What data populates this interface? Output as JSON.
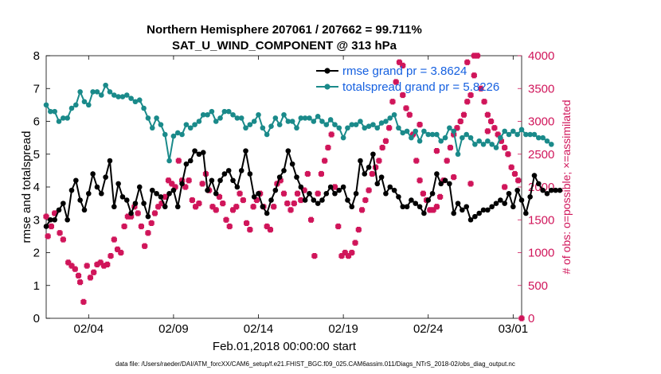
{
  "chart_data": {
    "type": "line",
    "title_line1": "Northern Hemisphere 207061 / 207662 = 99.711%",
    "title_line2": "SAT_U_WIND_COMPONENT @ 313 hPa",
    "xlabel": "Feb.01,2018 00:00:00 start",
    "ylabel": "rmse and totalspread",
    "ylabel_right": "# of obs: o=possible; ×=assimilated",
    "footer": "data file: /Users/raeder/DAI/ATM_forcXX/CAM6_setup/f.e21.FHIST_BGC.f09_025.CAM6assim.011/Diags_NTrS_2018-02/obs_diag_output.nc",
    "xlim": [
      1.0,
      29.0
    ],
    "ylim": [
      0,
      8
    ],
    "ylim_right": [
      0,
      4000
    ],
    "x_ticks": [
      3.5,
      8.5,
      13.5,
      18.5,
      23.5,
      28.5
    ],
    "x_tick_labels": [
      "02/04",
      "02/09",
      "02/14",
      "02/19",
      "02/24",
      "03/01"
    ],
    "y_ticks": [
      0,
      1,
      2,
      3,
      4,
      5,
      6,
      7,
      8
    ],
    "y_tick_labels": [
      "0",
      "1",
      "2",
      "3",
      "4",
      "5",
      "6",
      "7",
      "8"
    ],
    "y_right_ticks": [
      0,
      500,
      1000,
      1500,
      2000,
      2500,
      3000,
      3500,
      4000
    ],
    "y_right_tick_labels": [
      "0",
      "500",
      "1000",
      "1500",
      "2000",
      "2500",
      "3000",
      "3500",
      "4000"
    ],
    "legend": [
      "rmse grand pr = 3.8624",
      "totalspread grand pr = 5.8226"
    ],
    "legend_position": "top-right",
    "colors": {
      "rmse": "#000000",
      "spread": "#1a8a8a",
      "obs": "#d0155a",
      "legend_text": "#1560e0"
    },
    "series": [
      {
        "name": "rmse",
        "x_start": 1.0,
        "x_step": 0.25,
        "values": [
          2.8,
          3.0,
          3.0,
          3.3,
          3.5,
          3.0,
          3.9,
          4.2,
          3.6,
          3.3,
          3.8,
          4.4,
          4.0,
          3.8,
          4.3,
          4.8,
          3.4,
          4.1,
          3.7,
          3.6,
          3.2,
          3.5,
          4.0,
          3.5,
          3.1,
          3.9,
          3.8,
          3.7,
          3.4,
          3.8,
          3.9,
          3.4,
          4.1,
          4.7,
          4.8,
          5.1,
          5.0,
          5.05,
          3.9,
          4.2,
          3.8,
          4.2,
          4.4,
          4.5,
          4.2,
          4.0,
          4.5,
          5.1,
          4.4,
          3.7,
          3.8,
          3.4,
          3.2,
          3.6,
          3.9,
          4.3,
          4.5,
          5.1,
          4.7,
          4.3,
          4.0,
          3.6,
          3.8,
          3.6,
          3.5,
          3.6,
          3.8,
          4.0,
          3.8,
          3.9,
          4.0,
          3.6,
          3.4,
          3.8,
          4.8,
          4.4,
          4.6,
          5.0,
          4.1,
          4.3,
          3.8,
          4.0,
          3.9,
          3.7,
          3.4,
          3.4,
          3.6,
          3.5,
          3.4,
          3.2,
          3.6,
          3.8,
          4.4,
          4.1,
          4.2,
          4.1,
          3.2,
          3.5,
          3.3,
          3.4,
          3.0,
          3.1,
          3.2,
          3.3,
          3.3,
          3.4,
          3.5,
          3.6,
          3.5,
          3.8,
          3.4,
          3.9,
          3.6,
          3.2,
          3.7,
          4.35,
          4.1,
          3.9,
          3.8,
          3.9,
          3.9,
          3.9
        ]
      },
      {
        "name": "totalspread",
        "x_start": 1.0,
        "x_step": 0.25,
        "values": [
          6.5,
          6.3,
          6.3,
          6.0,
          6.1,
          6.1,
          6.4,
          6.5,
          6.9,
          6.6,
          6.5,
          6.9,
          6.9,
          6.8,
          7.1,
          6.9,
          6.8,
          6.75,
          6.75,
          6.8,
          6.7,
          6.6,
          6.65,
          6.4,
          6.1,
          5.8,
          6.1,
          5.9,
          5.6,
          4.8,
          5.55,
          5.65,
          5.6,
          5.9,
          5.8,
          5.9,
          6.0,
          6.2,
          6.2,
          6.3,
          6.0,
          6.1,
          6.3,
          6.3,
          6.2,
          6.1,
          6.1,
          5.8,
          5.9,
          6.0,
          6.2,
          5.8,
          5.6,
          5.85,
          6.1,
          5.9,
          6.2,
          6.0,
          6.0,
          5.8,
          6.1,
          6.1,
          6.1,
          6.0,
          6.15,
          6.0,
          5.9,
          6.05,
          5.9,
          5.8,
          5.5,
          5.8,
          5.9,
          5.9,
          6.0,
          5.8,
          5.85,
          5.9,
          5.8,
          5.95,
          6.0,
          6.1,
          6.2,
          5.8,
          5.65,
          5.7,
          5.5,
          5.7,
          5.4,
          5.7,
          5.6,
          5.6,
          5.6,
          5.4,
          5.5,
          5.8,
          5.7,
          5.0,
          5.5,
          5.6,
          5.5,
          5.3,
          5.4,
          5.3,
          5.4,
          5.3,
          5.2,
          5.5,
          5.7,
          5.6,
          5.7,
          5.6,
          5.75,
          5.6,
          5.6,
          5.6,
          5.5,
          5.5,
          5.4,
          5.3
        ]
      }
    ],
    "obs_assimilated": [
      [
        1.0,
        1550
      ],
      [
        1.1,
        1250
      ],
      [
        1.3,
        1400
      ],
      [
        1.5,
        1600
      ],
      [
        1.8,
        1300
      ],
      [
        2.0,
        1200
      ],
      [
        2.3,
        850
      ],
      [
        2.5,
        800
      ],
      [
        2.7,
        750
      ],
      [
        2.9,
        650
      ],
      [
        3.0,
        550
      ],
      [
        3.2,
        250
      ],
      [
        3.4,
        800
      ],
      [
        3.6,
        620
      ],
      [
        3.8,
        700
      ],
      [
        4.0,
        820
      ],
      [
        4.2,
        850
      ],
      [
        4.4,
        800
      ],
      [
        4.6,
        820
      ],
      [
        4.8,
        950
      ],
      [
        5.0,
        1200
      ],
      [
        5.2,
        1050
      ],
      [
        5.4,
        1000
      ],
      [
        5.6,
        1400
      ],
      [
        5.8,
        1550
      ],
      [
        6.0,
        1550
      ],
      [
        6.2,
        1700
      ],
      [
        6.4,
        1600
      ],
      [
        6.6,
        1400
      ],
      [
        6.8,
        1100
      ],
      [
        7.0,
        1300
      ],
      [
        7.2,
        1450
      ],
      [
        7.4,
        1600
      ],
      [
        7.6,
        1700
      ],
      [
        7.8,
        1750
      ],
      [
        8.0,
        1850
      ],
      [
        8.2,
        2100
      ],
      [
        8.4,
        2050
      ],
      [
        8.6,
        2000
      ],
      [
        8.8,
        2400
      ],
      [
        9.0,
        2100
      ],
      [
        9.2,
        2000
      ],
      [
        9.4,
        2100
      ],
      [
        9.6,
        1800
      ],
      [
        9.8,
        1700
      ],
      [
        10.0,
        1750
      ],
      [
        10.2,
        2050
      ],
      [
        10.4,
        2200
      ],
      [
        10.6,
        1950
      ],
      [
        10.8,
        1700
      ],
      [
        11.0,
        1650
      ],
      [
        11.2,
        1850
      ],
      [
        11.4,
        1750
      ],
      [
        11.6,
        1500
      ],
      [
        11.8,
        1400
      ],
      [
        12.0,
        1650
      ],
      [
        12.2,
        1700
      ],
      [
        12.4,
        1900
      ],
      [
        12.6,
        1800
      ],
      [
        12.8,
        1450
      ],
      [
        13.0,
        1350
      ],
      [
        13.2,
        1700
      ],
      [
        13.4,
        1800
      ],
      [
        13.6,
        1900
      ],
      [
        13.8,
        1700
      ],
      [
        14.0,
        1400
      ],
      [
        14.2,
        1350
      ],
      [
        14.4,
        1700
      ],
      [
        14.6,
        2050
      ],
      [
        14.8,
        2100
      ],
      [
        15.0,
        1900
      ],
      [
        15.2,
        1750
      ],
      [
        15.4,
        1650
      ],
      [
        15.6,
        1750
      ],
      [
        15.8,
        1900
      ],
      [
        16.0,
        1800
      ],
      [
        16.2,
        1950
      ],
      [
        16.4,
        2200
      ],
      [
        16.6,
        1500
      ],
      [
        16.8,
        950
      ],
      [
        17.0,
        1900
      ],
      [
        17.2,
        2200
      ],
      [
        17.4,
        2400
      ],
      [
        17.6,
        2600
      ],
      [
        17.8,
        2800
      ],
      [
        18.0,
        2000
      ],
      [
        18.2,
        1400
      ],
      [
        18.4,
        950
      ],
      [
        18.6,
        1000
      ],
      [
        18.8,
        950
      ],
      [
        19.0,
        1000
      ],
      [
        19.2,
        1150
      ],
      [
        19.4,
        1350
      ],
      [
        19.6,
        1650
      ],
      [
        19.8,
        1800
      ],
      [
        20.0,
        1950
      ],
      [
        20.2,
        2200
      ],
      [
        20.4,
        2300
      ],
      [
        20.6,
        2400
      ],
      [
        20.8,
        2600
      ],
      [
        21.0,
        2700
      ],
      [
        21.2,
        2900
      ],
      [
        21.4,
        3300
      ],
      [
        21.6,
        3600
      ],
      [
        21.8,
        3900
      ],
      [
        22.0,
        3400
      ],
      [
        22.2,
        3200
      ],
      [
        22.4,
        3100
      ],
      [
        22.6,
        2800
      ],
      [
        22.8,
        2400
      ],
      [
        23.0,
        2100
      ],
      [
        23.2,
        1900
      ],
      [
        23.4,
        1800
      ],
      [
        23.6,
        1650
      ],
      [
        23.8,
        1650
      ],
      [
        24.0,
        1700
      ],
      [
        24.2,
        1850
      ],
      [
        24.4,
        2100
      ],
      [
        24.6,
        2400
      ],
      [
        24.8,
        2600
      ],
      [
        25.0,
        2800
      ],
      [
        25.2,
        2900
      ],
      [
        25.4,
        3000
      ],
      [
        25.6,
        3100
      ],
      [
        25.8,
        3300
      ],
      [
        26.0,
        3400
      ],
      [
        26.2,
        3700
      ],
      [
        26.4,
        4000
      ],
      [
        26.6,
        3500
      ],
      [
        26.8,
        3300
      ],
      [
        27.0,
        3100
      ],
      [
        27.2,
        3000
      ],
      [
        27.4,
        2900
      ],
      [
        27.6,
        2800
      ],
      [
        27.8,
        2700
      ],
      [
        28.0,
        2600
      ],
      [
        28.2,
        2500
      ],
      [
        28.4,
        2300
      ],
      [
        28.6,
        2200
      ],
      [
        28.8,
        2100
      ],
      [
        29.0,
        0
      ]
    ],
    "obs_possible": [
      [
        25.8,
        3900
      ],
      [
        26.2,
        4000
      ],
      [
        22.0,
        3850
      ],
      [
        23.0,
        2950
      ],
      [
        24.0,
        2550
      ],
      [
        25.0,
        2150
      ],
      [
        26.0,
        2050
      ],
      [
        27.0,
        2850
      ],
      [
        28.0,
        2000
      ]
    ]
  }
}
